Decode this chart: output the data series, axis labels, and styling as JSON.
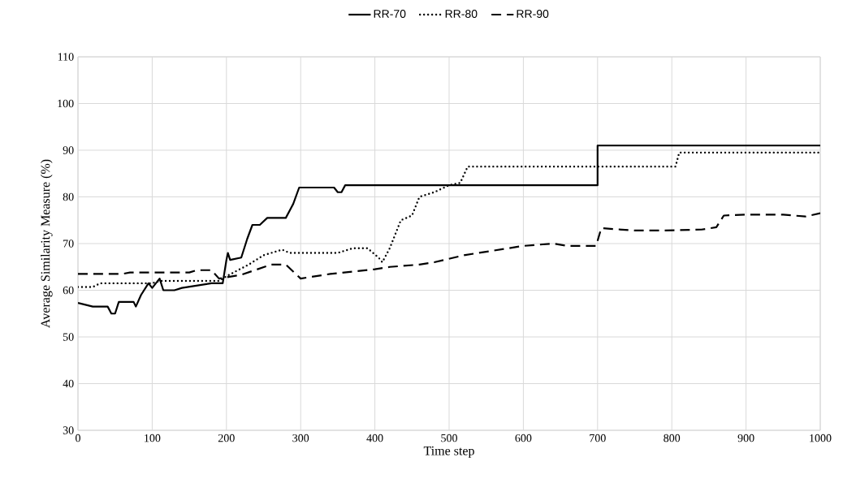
{
  "chart_data": {
    "type": "line",
    "xlabel": "Time step",
    "ylabel": "Average Similarity Measure (%)",
    "xlim": [
      0,
      1000
    ],
    "ylim": [
      30,
      110
    ],
    "xticks": [
      0,
      100,
      200,
      300,
      400,
      500,
      600,
      700,
      800,
      900,
      1000
    ],
    "yticks": [
      30,
      40,
      50,
      60,
      70,
      80,
      90,
      100,
      110
    ],
    "grid": true,
    "legend": "top",
    "marker": "none",
    "series": [
      {
        "name": "RR-70",
        "color": "#000000",
        "line_style": "solid",
        "x": [
          0,
          20,
          40,
          45,
          50,
          55,
          75,
          78,
          85,
          95,
          100,
          110,
          115,
          130,
          140,
          160,
          180,
          195,
          200,
          202,
          205,
          220,
          228,
          235,
          245,
          255,
          280,
          290,
          298,
          345,
          350,
          355,
          360,
          700,
          700,
          1000
        ],
        "values": [
          57.3,
          56.5,
          56.5,
          55,
          55,
          57.5,
          57.5,
          56.5,
          59,
          61.5,
          60.5,
          62.5,
          60,
          60,
          60.5,
          61,
          61.5,
          61.5,
          66.5,
          68,
          66.5,
          67,
          71,
          74,
          74,
          75.5,
          75.5,
          78.5,
          82,
          82,
          81,
          81,
          82.5,
          82.5,
          91,
          91
        ]
      },
      {
        "name": "RR-80",
        "color": "#000000",
        "line_style": "dotted",
        "x": [
          0,
          20,
          30,
          100,
          110,
          190,
          200,
          230,
          250,
          275,
          285,
          350,
          370,
          390,
          405,
          410,
          420,
          435,
          450,
          460,
          480,
          500,
          515,
          525,
          805,
          810,
          1000
        ],
        "values": [
          60.7,
          60.7,
          61.5,
          61.5,
          62,
          62,
          63,
          65.5,
          67.5,
          68.7,
          68,
          68,
          69,
          69,
          67,
          66,
          69,
          75,
          76,
          80,
          81,
          82.5,
          83,
          86.5,
          86.5,
          89.5,
          89.5
        ]
      },
      {
        "name": "RR-90",
        "color": "#000000",
        "line_style": "dashed",
        "x": [
          0,
          60,
          70,
          150,
          160,
          180,
          190,
          220,
          260,
          280,
          300,
          340,
          370,
          400,
          420,
          460,
          480,
          520,
          560,
          600,
          640,
          660,
          698,
          705,
          750,
          790,
          840,
          860,
          870,
          900,
          950,
          980,
          1000
        ],
        "values": [
          63.5,
          63.5,
          63.8,
          63.8,
          64.3,
          64.3,
          62.5,
          63.3,
          65.5,
          65.5,
          62.5,
          63.5,
          64,
          64.5,
          65,
          65.5,
          66,
          67.5,
          68.5,
          69.5,
          70,
          69.5,
          69.5,
          73.3,
          72.8,
          72.8,
          73,
          73.5,
          76,
          76.2,
          76.2,
          75.8,
          76.5
        ]
      }
    ]
  }
}
